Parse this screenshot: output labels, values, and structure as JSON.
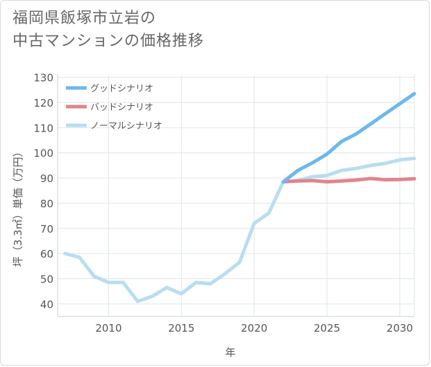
{
  "page": {
    "title_line1": "福岡県飯塚市立岩の",
    "title_line2": "中古マンションの価格推移"
  },
  "chart_data": {
    "type": "line",
    "title": "福岡県飯塚市立岩の中古マンションの価格推移",
    "xlabel": "年",
    "ylabel": "坪（3.3㎡）単価（万円）",
    "xlim": [
      2006.5,
      2031
    ],
    "ylim": [
      35,
      131
    ],
    "x_ticks": [
      2010,
      2015,
      2020,
      2025,
      2030
    ],
    "y_ticks": [
      40,
      50,
      60,
      70,
      80,
      90,
      100,
      110,
      120,
      130
    ],
    "grid": true,
    "legend_position": "top-left",
    "series": [
      {
        "name": "グッドシナリオ",
        "color": "#6cb8ee",
        "x": [
          2022,
          2023,
          2024,
          2025,
          2026,
          2027,
          2028,
          2029,
          2030,
          2031
        ],
        "values": [
          88.5,
          93.0,
          96.0,
          99.5,
          104.5,
          107.5,
          111.5,
          115.5,
          119.5,
          123.5
        ]
      },
      {
        "name": "バッドシナリオ",
        "color": "#e0848c",
        "x": [
          2022,
          2023,
          2024,
          2025,
          2026,
          2027,
          2028,
          2029,
          2030,
          2031
        ],
        "values": [
          88.5,
          88.8,
          89.0,
          88.5,
          88.8,
          89.2,
          89.8,
          89.3,
          89.4,
          89.7
        ]
      },
      {
        "name": "ノーマルシナリオ",
        "color": "#b8ddf0",
        "x": [
          2007,
          2008,
          2009,
          2010,
          2011,
          2012,
          2013,
          2014,
          2015,
          2016,
          2017,
          2018,
          2019,
          2020,
          2021,
          2022,
          2023,
          2024,
          2025,
          2026,
          2027,
          2028,
          2029,
          2030,
          2031
        ],
        "values": [
          60.0,
          58.5,
          51.0,
          48.5,
          48.5,
          41.0,
          43.0,
          46.5,
          44.0,
          48.5,
          48.0,
          52.0,
          56.5,
          72.0,
          76.0,
          88.5,
          89.0,
          90.5,
          91.0,
          93.0,
          93.8,
          95.0,
          95.8,
          97.2,
          97.8
        ]
      }
    ]
  }
}
